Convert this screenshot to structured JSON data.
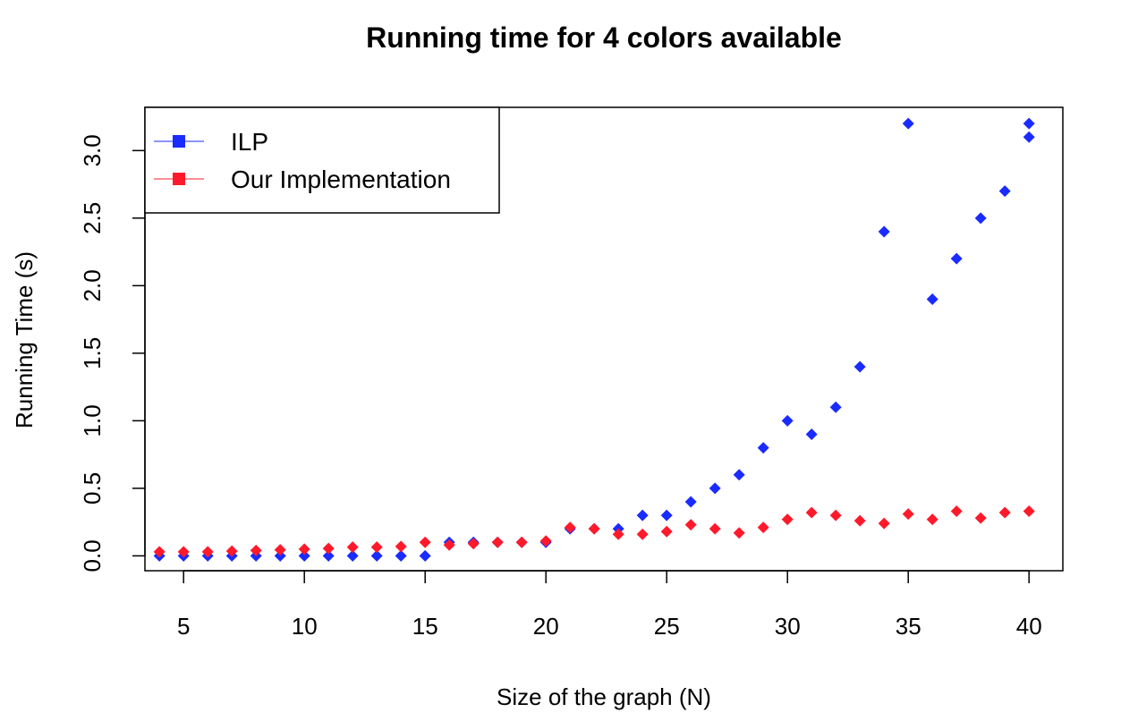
{
  "chart_data": {
    "type": "scatter",
    "title": "Running time for 4 colors available",
    "xlabel": "Size of the graph (N)",
    "ylabel": "Running Time (s)",
    "xlim": [
      3.4,
      41.4
    ],
    "ylim": [
      -0.11,
      3.32
    ],
    "x_ticks": [
      5,
      10,
      15,
      20,
      25,
      30,
      35,
      40
    ],
    "y_ticks": [
      0.0,
      0.5,
      1.0,
      1.5,
      2.0,
      2.5,
      3.0
    ],
    "y_tick_labels": [
      "0.0",
      "0.5",
      "1.0",
      "1.5",
      "2.0",
      "2.5",
      "3.0"
    ],
    "grid": false,
    "legend": {
      "position": "top-left",
      "entries": [
        {
          "name": "ILP",
          "color": "#1a2bff"
        },
        {
          "name": "Our Implementation",
          "color": "#ff1a2b"
        }
      ]
    },
    "series": [
      {
        "name": "ILP",
        "color": "#1a2bff",
        "marker": "diamond",
        "points": [
          [
            4,
            0.0
          ],
          [
            5,
            0.0
          ],
          [
            6,
            0.0
          ],
          [
            7,
            0.0
          ],
          [
            8,
            0.0
          ],
          [
            9,
            0.0
          ],
          [
            10,
            0.0
          ],
          [
            11,
            0.0
          ],
          [
            12,
            0.0
          ],
          [
            13,
            0.0
          ],
          [
            14,
            0.0
          ],
          [
            15,
            0.0
          ],
          [
            16,
            0.1
          ],
          [
            17,
            0.1
          ],
          [
            18,
            0.1
          ],
          [
            19,
            0.1
          ],
          [
            20,
            0.1
          ],
          [
            21,
            0.2
          ],
          [
            22,
            0.2
          ],
          [
            23,
            0.2
          ],
          [
            24,
            0.3
          ],
          [
            25,
            0.3
          ],
          [
            26,
            0.4
          ],
          [
            27,
            0.5
          ],
          [
            28,
            0.6
          ],
          [
            29,
            0.8
          ],
          [
            30,
            1.0
          ],
          [
            31,
            0.9
          ],
          [
            32,
            1.1
          ],
          [
            33,
            1.4
          ],
          [
            34,
            2.4
          ],
          [
            35,
            3.2
          ],
          [
            36,
            1.9
          ],
          [
            37,
            2.2
          ],
          [
            38,
            2.5
          ],
          [
            39,
            2.7
          ],
          [
            40,
            3.2
          ],
          [
            40,
            3.1
          ]
        ]
      },
      {
        "name": "Our Implementation",
        "color": "#ff1a2b",
        "marker": "diamond",
        "points": [
          [
            4,
            0.03
          ],
          [
            5,
            0.03
          ],
          [
            6,
            0.03
          ],
          [
            7,
            0.035
          ],
          [
            8,
            0.04
          ],
          [
            9,
            0.045
          ],
          [
            10,
            0.05
          ],
          [
            11,
            0.055
          ],
          [
            12,
            0.065
          ],
          [
            13,
            0.065
          ],
          [
            14,
            0.07
          ],
          [
            15,
            0.1
          ],
          [
            16,
            0.08
          ],
          [
            17,
            0.09
          ],
          [
            18,
            0.1
          ],
          [
            19,
            0.1
          ],
          [
            20,
            0.11
          ],
          [
            21,
            0.21
          ],
          [
            22,
            0.2
          ],
          [
            23,
            0.16
          ],
          [
            24,
            0.16
          ],
          [
            25,
            0.18
          ],
          [
            26,
            0.23
          ],
          [
            27,
            0.2
          ],
          [
            28,
            0.17
          ],
          [
            29,
            0.21
          ],
          [
            30,
            0.27
          ],
          [
            31,
            0.32
          ],
          [
            32,
            0.3
          ],
          [
            33,
            0.26
          ],
          [
            34,
            0.24
          ],
          [
            35,
            0.31
          ],
          [
            36,
            0.27
          ],
          [
            37,
            0.33
          ],
          [
            38,
            0.28
          ],
          [
            39,
            0.32
          ],
          [
            40,
            0.33
          ]
        ]
      }
    ]
  }
}
